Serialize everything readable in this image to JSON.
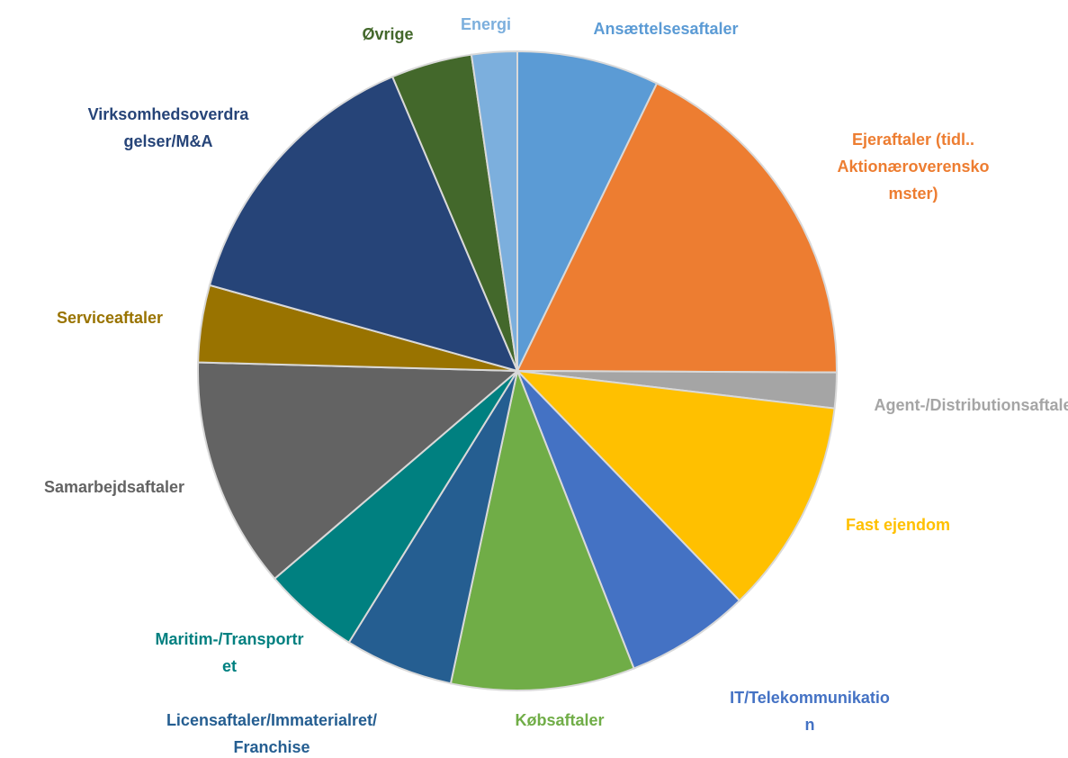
{
  "chart_data": {
    "type": "pie",
    "categories": [
      "Ansættelsesaftaler",
      "Ejeraftaler (tidl.. Aktionæroverenskomster)",
      "Agent-/Distributionsaftaler",
      "Fast ejendom",
      "IT/Telekommunikation",
      "Købsaftaler",
      "Licensaftaler/Immaterialret/Franchise",
      "Maritim-/Transportret",
      "Samarbejdsaftaler",
      "Serviceaftaler",
      "Virksomhedsoverdragelser/M&A",
      "Øvrige",
      "Energi"
    ],
    "values": [
      7.2,
      17.9,
      1.8,
      10.9,
      6.3,
      9.3,
      5.5,
      4.9,
      11.7,
      3.9,
      14.3,
      4.1,
      2.3
    ],
    "colors": [
      "#5b9bd5",
      "#ed7d31",
      "#a5a5a5",
      "#ffc000",
      "#4472c4",
      "#70ad47",
      "#255e91",
      "#008080",
      "#636363",
      "#997300",
      "#264478",
      "#43682b",
      "#7cafdd"
    ]
  }
}
